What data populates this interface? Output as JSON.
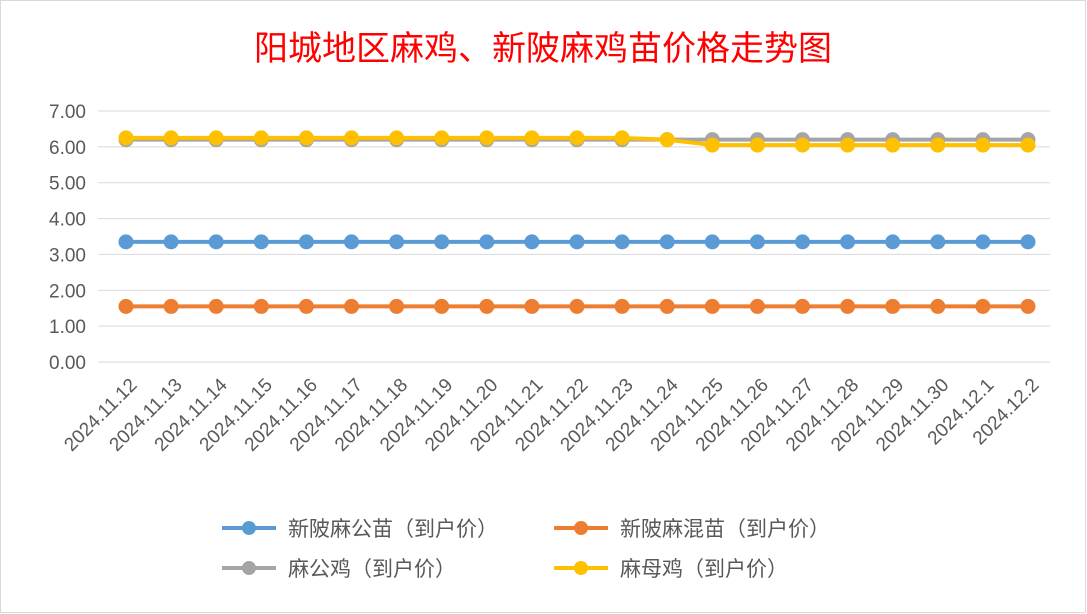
{
  "chart_data": {
    "type": "line",
    "title": "阳城地区麻鸡、新陂麻鸡苗价格走势图",
    "xlabel": "",
    "ylabel": "",
    "ylim": [
      0,
      7
    ],
    "y_ticks": [
      "0.00",
      "1.00",
      "2.00",
      "3.00",
      "4.00",
      "5.00",
      "6.00",
      "7.00"
    ],
    "grid": true,
    "legend_position": "bottom",
    "categories": [
      "2024.11.12",
      "2024.11.13",
      "2024.11.14",
      "2024.11.15",
      "2024.11.16",
      "2024.11.17",
      "2024.11.18",
      "2024.11.19",
      "2024.11.20",
      "2024.11.21",
      "2024.11.22",
      "2024.11.23",
      "2024.11.24",
      "2024.11.25",
      "2024.11.26",
      "2024.11.27",
      "2024.11.28",
      "2024.11.29",
      "2024.11.30",
      "2024.12.1",
      "2024.12.2"
    ],
    "series": [
      {
        "name": "新陂麻公苗（到户价）",
        "color": "#5b9bd5",
        "values": [
          3.35,
          3.35,
          3.35,
          3.35,
          3.35,
          3.35,
          3.35,
          3.35,
          3.35,
          3.35,
          3.35,
          3.35,
          3.35,
          3.35,
          3.35,
          3.35,
          3.35,
          3.35,
          3.35,
          3.35,
          3.35
        ]
      },
      {
        "name": "新陂麻混苗（到户价）",
        "color": "#ed7d31",
        "values": [
          1.55,
          1.55,
          1.55,
          1.55,
          1.55,
          1.55,
          1.55,
          1.55,
          1.55,
          1.55,
          1.55,
          1.55,
          1.55,
          1.55,
          1.55,
          1.55,
          1.55,
          1.55,
          1.55,
          1.55,
          1.55
        ]
      },
      {
        "name": "麻公鸡（到户价）",
        "color": "#a5a5a5",
        "values": [
          6.2,
          6.2,
          6.2,
          6.2,
          6.2,
          6.2,
          6.2,
          6.2,
          6.2,
          6.2,
          6.2,
          6.2,
          6.2,
          6.2,
          6.2,
          6.2,
          6.2,
          6.2,
          6.2,
          6.2,
          6.2
        ]
      },
      {
        "name": "麻母鸡（到户价）",
        "color": "#ffc000",
        "values": [
          6.25,
          6.25,
          6.25,
          6.25,
          6.25,
          6.25,
          6.25,
          6.25,
          6.25,
          6.25,
          6.25,
          6.25,
          6.2,
          6.05,
          6.05,
          6.05,
          6.05,
          6.05,
          6.05,
          6.05,
          6.05
        ]
      }
    ]
  }
}
